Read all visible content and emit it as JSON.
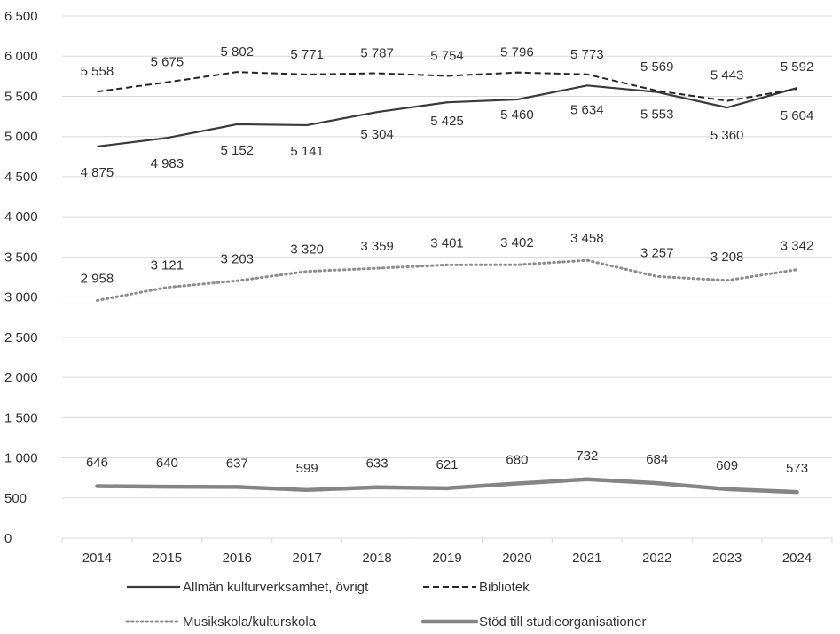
{
  "chart_data": {
    "type": "line",
    "title": "",
    "xlabel": "",
    "ylabel": "",
    "ylim": [
      0,
      6500
    ],
    "ytick_step": 500,
    "x": [
      "2014",
      "2015",
      "2016",
      "2017",
      "2018",
      "2019",
      "2020",
      "2021",
      "2022",
      "2023",
      "2024"
    ],
    "y_tick_labels": [
      "0",
      "500",
      "1 000",
      "1 500",
      "2 000",
      "2 500",
      "3 000",
      "3 500",
      "4 000",
      "4 500",
      "5 000",
      "5 500",
      "6 000",
      "6 500"
    ],
    "grid": true,
    "legend_position": "bottom",
    "series": [
      {
        "name": "Allmän  kulturverksamhet, övrigt",
        "values": [
          4875,
          4983,
          5152,
          5141,
          5304,
          5425,
          5460,
          5634,
          5553,
          5360,
          5604
        ],
        "labels": [
          "4 875",
          "4 983",
          "5 152",
          "5 141",
          "5 304",
          "5 425",
          "5 460",
          "5 634",
          "5 553",
          "5 360",
          "5 604"
        ],
        "color": "#3a3a3a",
        "style": "solid"
      },
      {
        "name": "Bibliotek",
        "values": [
          5558,
          5675,
          5802,
          5771,
          5787,
          5754,
          5796,
          5773,
          5569,
          5443,
          5592
        ],
        "labels": [
          "5 558",
          "5 675",
          "5 802",
          "5 771",
          "5 787",
          "5 754",
          "5 796",
          "5 773",
          "5 569",
          "5 443",
          "5 592"
        ],
        "color": "#262626",
        "style": "dashed"
      },
      {
        "name": "Musikskola/kulturskola",
        "values": [
          2958,
          3121,
          3203,
          3320,
          3359,
          3401,
          3402,
          3458,
          3257,
          3208,
          3342
        ],
        "labels": [
          "2 958",
          "3 121",
          "3 203",
          "3 320",
          "3 359",
          "3 401",
          "3 402",
          "3 458",
          "3 257",
          "3 208",
          "3 342"
        ],
        "color": "#8c8c8c",
        "style": "dotted"
      },
      {
        "name": "Stöd till studieorganisationer",
        "values": [
          646,
          640,
          637,
          599,
          633,
          621,
          680,
          732,
          684,
          609,
          573
        ],
        "labels": [
          "646",
          "640",
          "637",
          "599",
          "633",
          "621",
          "680",
          "732",
          "684",
          "609",
          "573"
        ],
        "color": "#858585",
        "style": "thick"
      }
    ]
  }
}
